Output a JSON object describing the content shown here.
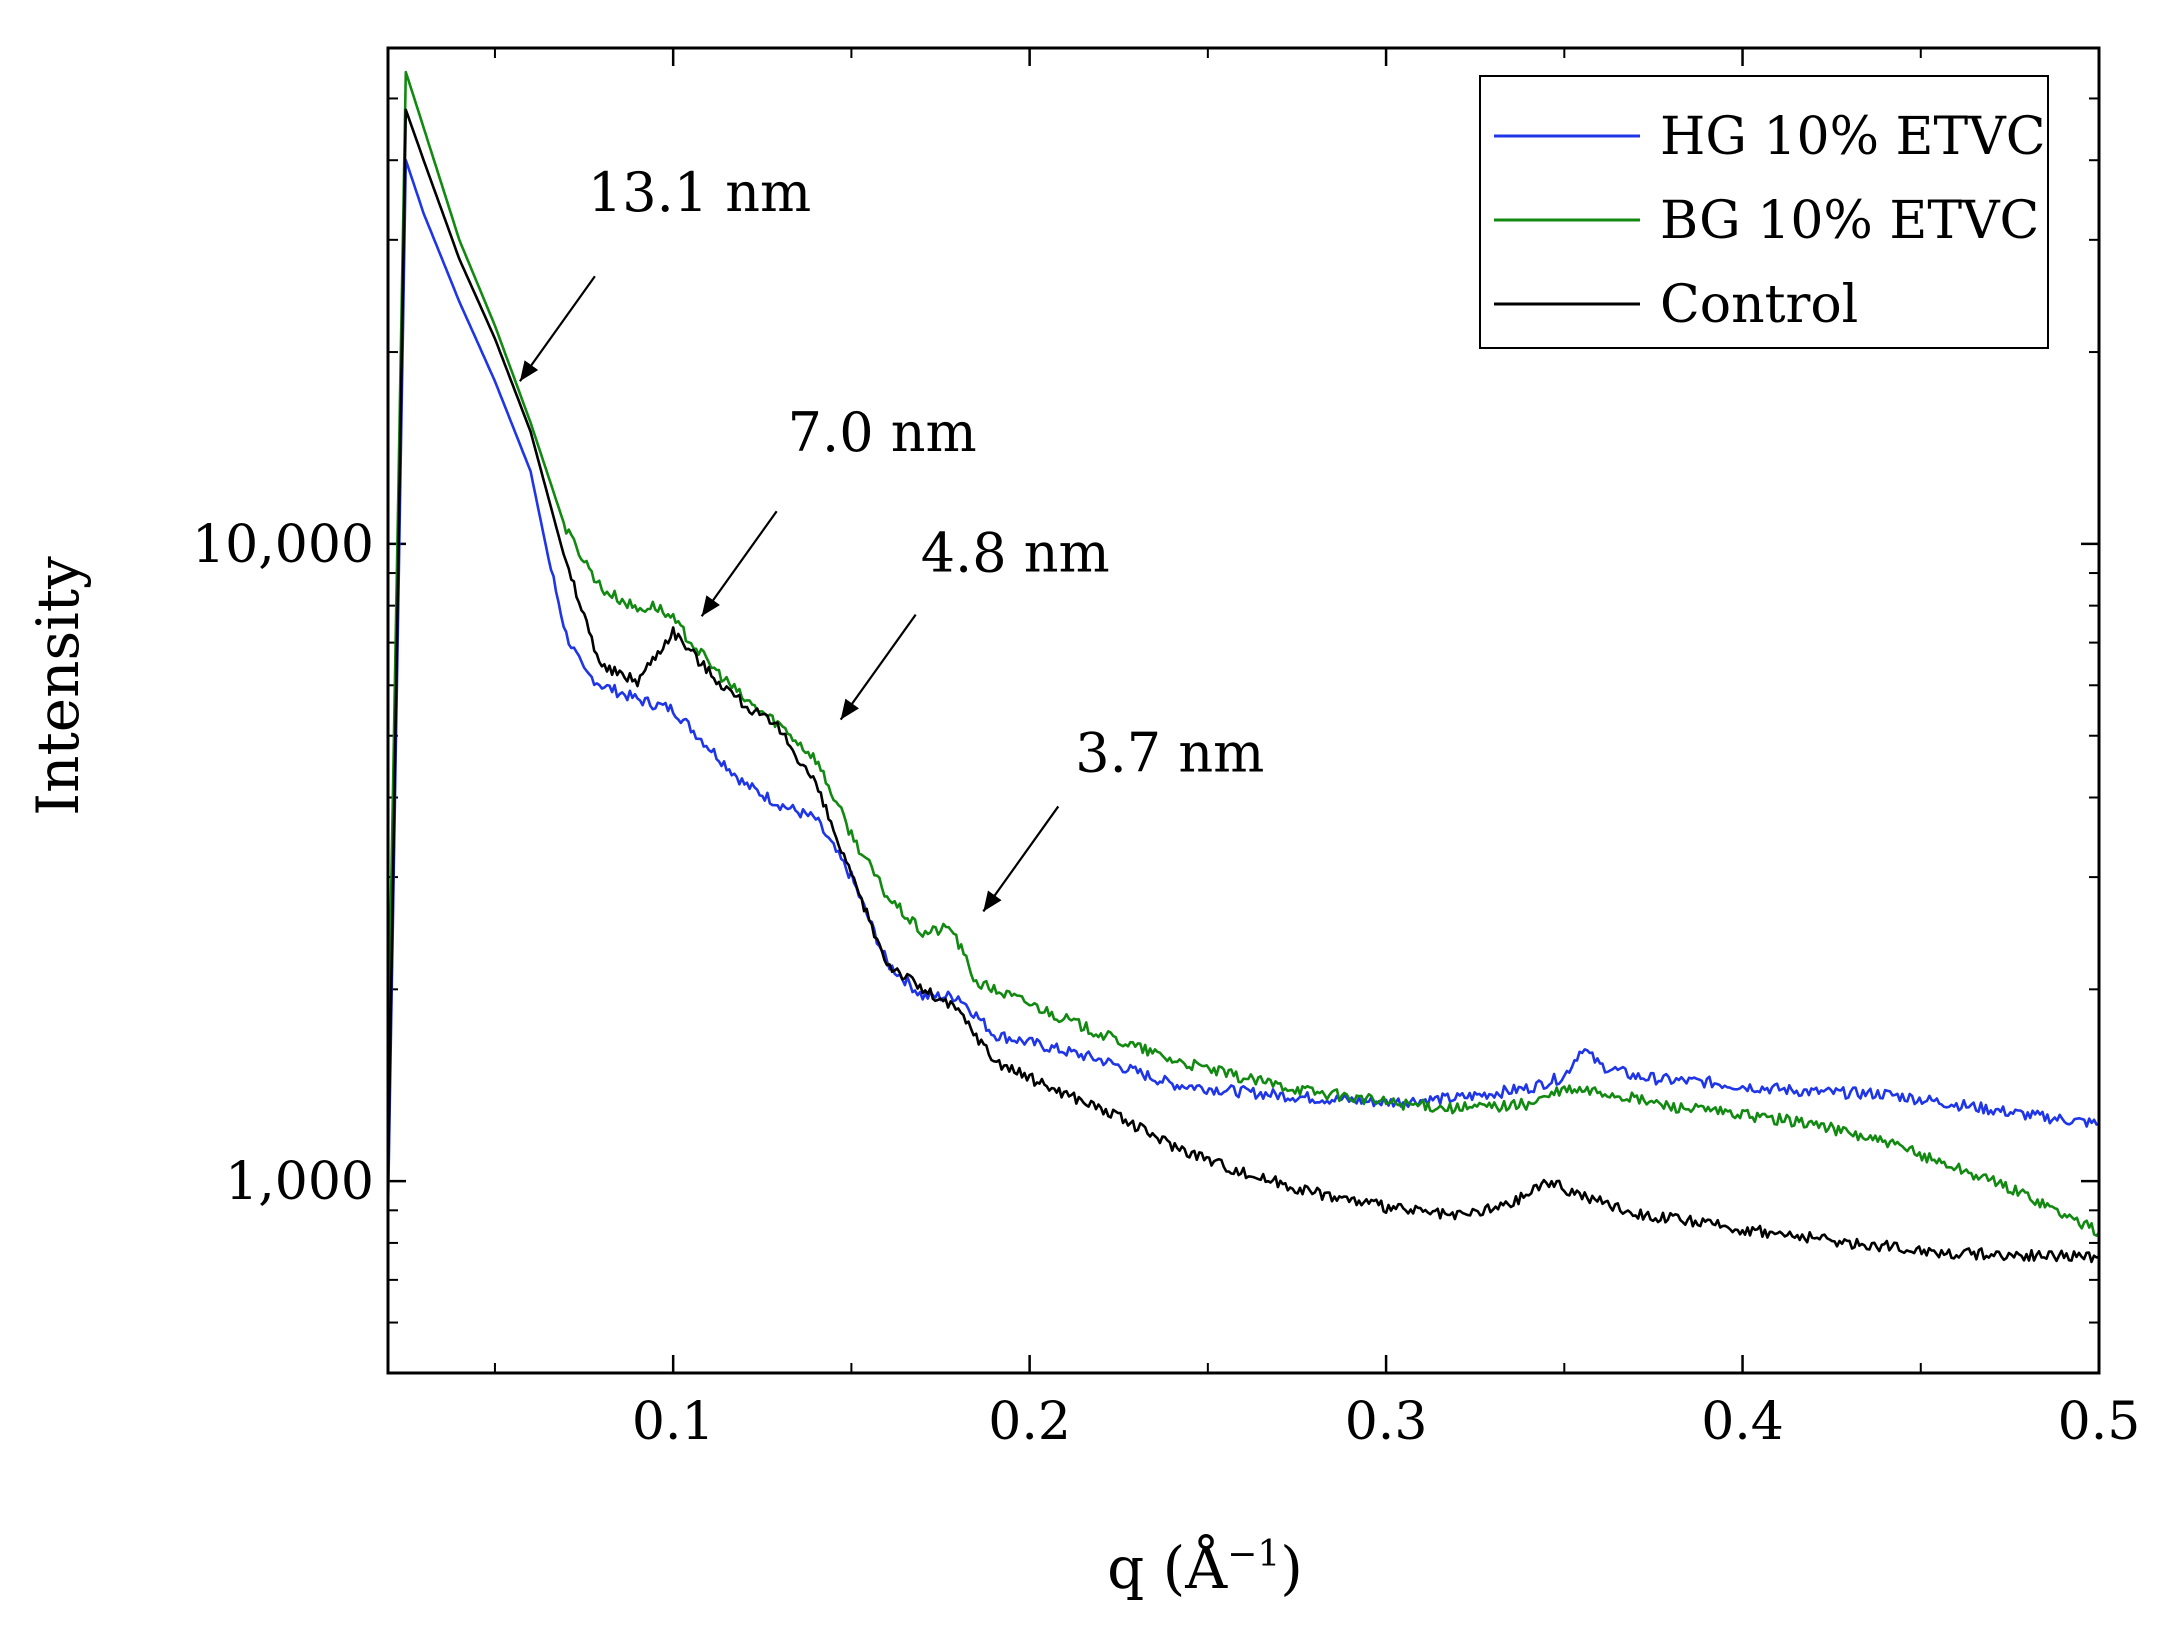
{
  "chart_data": {
    "type": "line",
    "title": "",
    "xlabel": "q (Å",
    "xlabel_sup": "−1",
    "xlabel_close": ")",
    "ylabel": "Intensity",
    "xlim": [
      0.02,
      0.5
    ],
    "ylim": [
      500,
      60000
    ],
    "yscale": "log",
    "x_ticks": [
      0.1,
      0.2,
      0.3,
      0.4,
      0.5
    ],
    "x_tick_labels": [
      "0.1",
      "0.2",
      "0.3",
      "0.4",
      "0.5"
    ],
    "y_ticks": [
      1000,
      10000
    ],
    "y_tick_labels": [
      "1,000",
      "10,000"
    ],
    "legend": {
      "position": "top-right"
    },
    "series": [
      {
        "name": "HG 10% ETVC",
        "color": "#1f35e8",
        "points": [
          [
            0.02,
            900
          ],
          [
            0.025,
            40000
          ],
          [
            0.03,
            33000
          ],
          [
            0.04,
            24000
          ],
          [
            0.05,
            18000
          ],
          [
            0.06,
            13000
          ],
          [
            0.065,
            9500
          ],
          [
            0.07,
            7200
          ],
          [
            0.075,
            6300
          ],
          [
            0.08,
            6000
          ],
          [
            0.09,
            5700
          ],
          [
            0.1,
            5500
          ],
          [
            0.11,
            4800
          ],
          [
            0.12,
            4200
          ],
          [
            0.13,
            3900
          ],
          [
            0.14,
            3700
          ],
          [
            0.15,
            3000
          ],
          [
            0.16,
            2200
          ],
          [
            0.17,
            1950
          ],
          [
            0.18,
            1950
          ],
          [
            0.19,
            1700
          ],
          [
            0.2,
            1650
          ],
          [
            0.22,
            1550
          ],
          [
            0.24,
            1420
          ],
          [
            0.26,
            1380
          ],
          [
            0.28,
            1350
          ],
          [
            0.3,
            1330
          ],
          [
            0.32,
            1350
          ],
          [
            0.34,
            1400
          ],
          [
            0.35,
            1460
          ],
          [
            0.355,
            1620
          ],
          [
            0.36,
            1520
          ],
          [
            0.37,
            1460
          ],
          [
            0.38,
            1440
          ],
          [
            0.39,
            1430
          ],
          [
            0.4,
            1410
          ],
          [
            0.42,
            1380
          ],
          [
            0.44,
            1370
          ],
          [
            0.46,
            1320
          ],
          [
            0.48,
            1270
          ],
          [
            0.5,
            1230
          ]
        ]
      },
      {
        "name": "BG 10% ETVC",
        "color": "#128a12",
        "points": [
          [
            0.02,
            1500
          ],
          [
            0.025,
            55000
          ],
          [
            0.03,
            45000
          ],
          [
            0.04,
            30000
          ],
          [
            0.05,
            22000
          ],
          [
            0.06,
            15500
          ],
          [
            0.07,
            10500
          ],
          [
            0.08,
            8500
          ],
          [
            0.09,
            7900
          ],
          [
            0.095,
            8000
          ],
          [
            0.1,
            7600
          ],
          [
            0.11,
            6500
          ],
          [
            0.12,
            5700
          ],
          [
            0.13,
            5200
          ],
          [
            0.14,
            4600
          ],
          [
            0.15,
            3500
          ],
          [
            0.16,
            2800
          ],
          [
            0.17,
            2450
          ],
          [
            0.178,
            2500
          ],
          [
            0.185,
            2050
          ],
          [
            0.2,
            1900
          ],
          [
            0.22,
            1700
          ],
          [
            0.24,
            1550
          ],
          [
            0.26,
            1450
          ],
          [
            0.28,
            1380
          ],
          [
            0.3,
            1330
          ],
          [
            0.32,
            1300
          ],
          [
            0.34,
            1320
          ],
          [
            0.35,
            1390
          ],
          [
            0.36,
            1380
          ],
          [
            0.38,
            1310
          ],
          [
            0.4,
            1270
          ],
          [
            0.42,
            1230
          ],
          [
            0.44,
            1150
          ],
          [
            0.46,
            1050
          ],
          [
            0.48,
            950
          ],
          [
            0.5,
            830
          ]
        ]
      },
      {
        "name": "Control",
        "color": "#000000",
        "points": [
          [
            0.02,
            1000
          ],
          [
            0.025,
            48000
          ],
          [
            0.03,
            40000
          ],
          [
            0.04,
            28000
          ],
          [
            0.05,
            21000
          ],
          [
            0.06,
            15000
          ],
          [
            0.07,
            9300
          ],
          [
            0.08,
            6400
          ],
          [
            0.09,
            6100
          ],
          [
            0.1,
            7300
          ],
          [
            0.11,
            6300
          ],
          [
            0.12,
            5600
          ],
          [
            0.13,
            5100
          ],
          [
            0.14,
            4200
          ],
          [
            0.15,
            3000
          ],
          [
            0.16,
            2200
          ],
          [
            0.17,
            2000
          ],
          [
            0.18,
            1850
          ],
          [
            0.19,
            1550
          ],
          [
            0.2,
            1450
          ],
          [
            0.22,
            1300
          ],
          [
            0.24,
            1140
          ],
          [
            0.26,
            1030
          ],
          [
            0.28,
            960
          ],
          [
            0.3,
            910
          ],
          [
            0.32,
            880
          ],
          [
            0.335,
            920
          ],
          [
            0.345,
            1000
          ],
          [
            0.355,
            950
          ],
          [
            0.37,
            890
          ],
          [
            0.4,
            840
          ],
          [
            0.43,
            800
          ],
          [
            0.46,
            770
          ],
          [
            0.5,
            760
          ]
        ]
      }
    ],
    "annotations": [
      {
        "text": "13.1 nm",
        "q": 0.057,
        "intensity": 18000
      },
      {
        "text": "7.0 nm",
        "q": 0.108,
        "intensity": 7700
      },
      {
        "text": "4.8 nm",
        "q": 0.147,
        "intensity": 5300
      },
      {
        "text": "3.7 nm",
        "q": 0.187,
        "intensity": 2650
      }
    ]
  }
}
